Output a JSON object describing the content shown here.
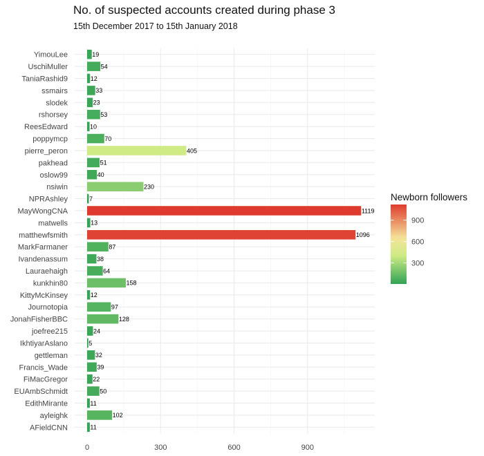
{
  "chart_data": {
    "type": "bar",
    "orientation": "horizontal",
    "title": "No. of suspected accounts created during phase 3",
    "subtitle": "15th December 2017 to 15th January 2018",
    "xlabel": "",
    "ylabel": "",
    "xlim": [
      0,
      1180
    ],
    "x_ticks": [
      0,
      300,
      600,
      900
    ],
    "grid": true,
    "categories": [
      "YimouLee",
      "UschiMuller",
      "TaniaRashid9",
      "ssmairs",
      "slodek",
      "rshorsey",
      "ReesEdward",
      "poppymcp",
      "pierre_peron",
      "pakhead",
      "oslow99",
      "nsiwin",
      "NPRAshley",
      "MayWongCNA",
      "matwells",
      "matthewfsmith",
      "MarkFarmaner",
      "Ivandenassum",
      "Lauraehaigh",
      "kunkhin80",
      "KittyMcKinsey",
      "Journotopia",
      "JonahFisherBBC",
      "joefree215",
      "IkhtiyarAslano",
      "gettleman",
      "Francis_Wade",
      "FiMacGregor",
      "EUAmbSchmidt",
      "EdithMirante",
      "ayleighk",
      "AFieldCNN"
    ],
    "values": [
      19,
      54,
      12,
      33,
      23,
      53,
      10,
      70,
      405,
      51,
      40,
      230,
      7,
      1119,
      13,
      1096,
      87,
      38,
      64,
      158,
      12,
      97,
      128,
      24,
      5,
      32,
      39,
      22,
      50,
      11,
      102,
      11
    ],
    "legend": {
      "title": "Newborn followers",
      "position": "right",
      "ticks": [
        300,
        600,
        900
      ],
      "range": [
        5,
        1119
      ],
      "colors": {
        "low": "#31A354",
        "mid": "#CDEB85",
        "midhigh": "#F5E39A",
        "high": "#DE3B2E"
      }
    }
  }
}
